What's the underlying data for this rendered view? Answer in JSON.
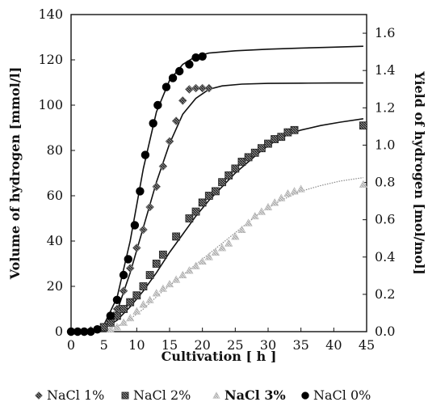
{
  "chart_data": {
    "type": "scatter",
    "title": "",
    "xlabel": "Cultivation [ h ]",
    "ylabel": "Volume of hydrogen [mmol/l]",
    "y2label": "Yield of hydrogen [mol/mol]",
    "xlim": [
      0,
      45
    ],
    "ylim": [
      0,
      140
    ],
    "y2lim": [
      0,
      1.7
    ],
    "x_ticks": [
      "0",
      "5",
      "10",
      "15",
      "20",
      "25",
      "30",
      "35",
      "40",
      "45"
    ],
    "y_ticks": [
      "0",
      "20",
      "40",
      "60",
      "80",
      "100",
      "120",
      "140"
    ],
    "y2_ticks": [
      "0.0",
      "0.2",
      "0.4",
      "0.6",
      "0.8",
      "1.0",
      "1.2",
      "1.4",
      "1.6"
    ],
    "grid": false,
    "legend_position": "bottom",
    "series": [
      {
        "name": "NaCl 1%",
        "marker": "diamond-hatched",
        "color": "#555555",
        "points": [
          [
            0,
            0
          ],
          [
            1,
            0
          ],
          [
            2,
            0
          ],
          [
            3,
            0.5
          ],
          [
            4,
            1
          ],
          [
            5,
            2
          ],
          [
            6,
            5
          ],
          [
            7,
            10
          ],
          [
            8,
            18
          ],
          [
            9,
            28
          ],
          [
            10,
            37
          ],
          [
            11,
            45
          ],
          [
            12,
            55
          ],
          [
            13,
            64
          ],
          [
            14,
            73
          ],
          [
            15,
            84
          ],
          [
            16,
            93
          ],
          [
            17,
            102
          ],
          [
            18,
            107
          ],
          [
            19,
            107.5
          ],
          [
            20,
            107.5
          ],
          [
            21,
            107.5
          ]
        ],
        "fit": [
          [
            0,
            0
          ],
          [
            3,
            0.3
          ],
          [
            5,
            1.5
          ],
          [
            7,
            9
          ],
          [
            9,
            26
          ],
          [
            11,
            46
          ],
          [
            13,
            66
          ],
          [
            15,
            83
          ],
          [
            17,
            96
          ],
          [
            19,
            103
          ],
          [
            21,
            107
          ],
          [
            23,
            108.5
          ],
          [
            26,
            109.3
          ],
          [
            30,
            109.6
          ],
          [
            35,
            109.7
          ],
          [
            40,
            109.8
          ],
          [
            44.5,
            109.8
          ]
        ]
      },
      {
        "name": "NaCl 2%",
        "marker": "square-hatched",
        "color": "#333333",
        "points": [
          [
            5,
            2
          ],
          [
            6,
            4
          ],
          [
            7,
            7
          ],
          [
            8,
            10
          ],
          [
            9,
            13
          ],
          [
            10,
            16
          ],
          [
            11,
            20
          ],
          [
            12,
            25
          ],
          [
            13,
            30
          ],
          [
            14,
            34
          ],
          [
            16,
            42
          ],
          [
            18,
            50
          ],
          [
            19,
            53
          ],
          [
            20,
            57
          ],
          [
            21,
            60
          ],
          [
            22,
            62
          ],
          [
            23,
            66
          ],
          [
            24,
            69
          ],
          [
            25,
            72
          ],
          [
            26,
            75
          ],
          [
            27,
            77
          ],
          [
            28,
            79
          ],
          [
            29,
            81
          ],
          [
            30,
            83
          ],
          [
            31,
            85
          ],
          [
            32,
            86
          ],
          [
            33,
            88
          ],
          [
            34,
            89
          ],
          [
            44.5,
            91
          ]
        ],
        "fit": [
          [
            0,
            0
          ],
          [
            3,
            0.3
          ],
          [
            5,
            1.5
          ],
          [
            7,
            5
          ],
          [
            9,
            11
          ],
          [
            11,
            18
          ],
          [
            13,
            26
          ],
          [
            15,
            35
          ],
          [
            17,
            43
          ],
          [
            19,
            51
          ],
          [
            21,
            58
          ],
          [
            23,
            64
          ],
          [
            25,
            70
          ],
          [
            27,
            75
          ],
          [
            29,
            80
          ],
          [
            31,
            84
          ],
          [
            33,
            87
          ],
          [
            35,
            89
          ],
          [
            38,
            91
          ],
          [
            41,
            92.5
          ],
          [
            44.5,
            94
          ]
        ]
      },
      {
        "name": "NaCl 3%",
        "marker": "triangle-light",
        "color": "#aaaaaa",
        "points": [
          [
            6,
            1
          ],
          [
            7,
            2
          ],
          [
            8,
            4
          ],
          [
            9,
            6
          ],
          [
            10,
            9
          ],
          [
            11,
            12
          ],
          [
            12,
            14
          ],
          [
            13,
            17
          ],
          [
            14,
            19
          ],
          [
            15,
            21
          ],
          [
            16,
            23
          ],
          [
            17,
            25
          ],
          [
            18,
            27
          ],
          [
            19,
            29
          ],
          [
            20,
            31
          ],
          [
            21,
            33
          ],
          [
            22,
            35
          ],
          [
            23,
            37
          ],
          [
            24,
            39
          ],
          [
            25,
            42
          ],
          [
            26,
            45
          ],
          [
            27,
            48
          ],
          [
            28,
            51
          ],
          [
            29,
            53
          ],
          [
            30,
            55
          ],
          [
            31,
            57
          ],
          [
            32,
            59
          ],
          [
            33,
            61
          ],
          [
            34,
            62
          ],
          [
            35,
            63
          ],
          [
            44.5,
            65
          ]
        ],
        "fit": [
          [
            0,
            0
          ],
          [
            5,
            0.5
          ],
          [
            8,
            3.5
          ],
          [
            11,
            10
          ],
          [
            14,
            18
          ],
          [
            17,
            25
          ],
          [
            20,
            32
          ],
          [
            23,
            39
          ],
          [
            26,
            46
          ],
          [
            29,
            53
          ],
          [
            32,
            58
          ],
          [
            35,
            62
          ],
          [
            38,
            64.5
          ],
          [
            41,
            66.5
          ],
          [
            44.5,
            68
          ]
        ]
      },
      {
        "name": "NaCl 0%",
        "marker": "circle-filled",
        "color": "#000000",
        "points": [
          [
            0,
            0
          ],
          [
            1,
            0
          ],
          [
            2,
            0
          ],
          [
            3,
            0
          ],
          [
            4,
            1
          ],
          [
            6,
            7
          ],
          [
            7,
            14
          ],
          [
            8,
            25
          ],
          [
            8.7,
            32
          ],
          [
            9.7,
            47
          ],
          [
            10.5,
            62
          ],
          [
            11.3,
            78
          ],
          [
            12.5,
            92
          ],
          [
            13.2,
            100
          ],
          [
            14.5,
            108
          ],
          [
            15.5,
            112
          ],
          [
            16.5,
            115
          ],
          [
            18,
            118
          ],
          [
            19,
            121
          ],
          [
            20,
            121.5
          ]
        ],
        "fit": [
          [
            0,
            0
          ],
          [
            3,
            0.3
          ],
          [
            5,
            3
          ],
          [
            7,
            15
          ],
          [
            9,
            40
          ],
          [
            11,
            72
          ],
          [
            13,
            97
          ],
          [
            15,
            111
          ],
          [
            17,
            118
          ],
          [
            19,
            121.5
          ],
          [
            21,
            123
          ],
          [
            25,
            124
          ],
          [
            30,
            124.7
          ],
          [
            35,
            125.2
          ],
          [
            40,
            125.6
          ],
          [
            44.5,
            126
          ]
        ]
      }
    ]
  }
}
